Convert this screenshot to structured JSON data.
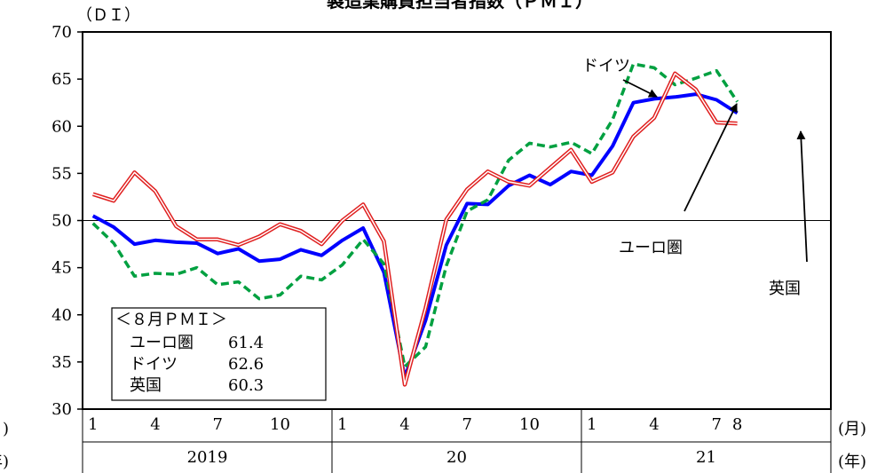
{
  "chart_data": {
    "type": "line",
    "title": "製造業購買担当者指数（ＰＭＩ）",
    "ylabel": "（ＤＩ）",
    "ylim": [
      30,
      70
    ],
    "yticks": [
      30,
      35,
      40,
      45,
      50,
      55,
      60,
      65,
      70
    ],
    "reference_line": 50,
    "x_month_labels": [
      "1",
      "4",
      "7",
      "10",
      "1",
      "4",
      "7",
      "10",
      "1",
      "4",
      "7",
      "8"
    ],
    "x_year_labels": [
      "2019",
      "20",
      "21"
    ],
    "x_month_unit": "(月)",
    "x_year_unit": "(年)",
    "months": [
      "2019-01",
      "2019-02",
      "2019-03",
      "2019-04",
      "2019-05",
      "2019-06",
      "2019-07",
      "2019-08",
      "2019-09",
      "2019-10",
      "2019-11",
      "2019-12",
      "2020-01",
      "2020-02",
      "2020-03",
      "2020-04",
      "2020-05",
      "2020-06",
      "2020-07",
      "2020-08",
      "2020-09",
      "2020-10",
      "2020-11",
      "2020-12",
      "2021-01",
      "2021-02",
      "2021-03",
      "2021-04",
      "2021-05",
      "2021-06",
      "2021-07",
      "2021-08"
    ],
    "series": [
      {
        "name": "ユーロ圏",
        "color": "#0000ff",
        "style": "solid-thick",
        "values": [
          50.5,
          49.3,
          47.5,
          47.9,
          47.7,
          47.6,
          46.5,
          47.0,
          45.7,
          45.9,
          46.9,
          46.3,
          47.9,
          49.2,
          44.5,
          33.4,
          39.4,
          47.4,
          51.8,
          51.7,
          53.7,
          54.8,
          53.8,
          55.2,
          54.8,
          57.9,
          62.5,
          62.9,
          63.1,
          63.4,
          62.8,
          61.4
        ]
      },
      {
        "name": "ドイツ",
        "color": "#00a040",
        "style": "dashed",
        "values": [
          49.7,
          47.6,
          44.1,
          44.4,
          44.3,
          45.0,
          43.2,
          43.5,
          41.7,
          42.1,
          44.1,
          43.7,
          45.3,
          48.0,
          45.4,
          34.5,
          36.6,
          45.2,
          51.0,
          52.2,
          56.4,
          58.2,
          57.8,
          58.3,
          57.1,
          60.7,
          66.6,
          66.2,
          64.4,
          65.1,
          65.9,
          62.6
        ]
      },
      {
        "name": "英国",
        "color": "#e02020",
        "style": "double",
        "values": [
          52.8,
          52.1,
          55.1,
          53.1,
          49.4,
          48.0,
          48.0,
          47.4,
          48.3,
          49.6,
          48.9,
          47.5,
          50.0,
          51.7,
          47.8,
          32.6,
          40.7,
          50.1,
          53.3,
          55.2,
          54.1,
          53.7,
          55.6,
          57.5,
          54.1,
          55.1,
          58.9,
          60.9,
          65.6,
          63.9,
          60.4,
          60.3
        ]
      }
    ],
    "annotations": {
      "germany": "ドイツ",
      "eurozone": "ユーロ圏",
      "uk": "英国"
    },
    "infobox": {
      "title": "＜８月ＰＭＩ＞",
      "rows": [
        {
          "label": "ユーロ圏",
          "value": "61.4"
        },
        {
          "label": "ドイツ",
          "value": "62.6"
        },
        {
          "label": "英国",
          "value": "60.3"
        }
      ]
    }
  }
}
